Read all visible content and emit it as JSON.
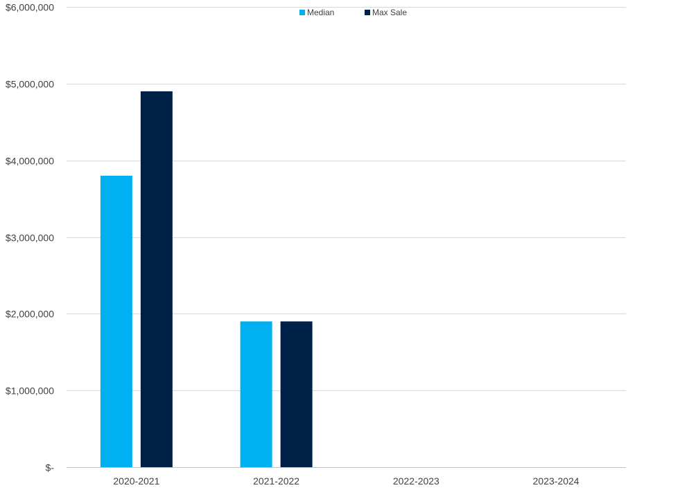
{
  "chart_data": {
    "type": "bar",
    "categories": [
      "2020-2021",
      "2021-2022",
      "2022-2023",
      "2023-2024"
    ],
    "series": [
      {
        "name": "Median",
        "color": "#00B0F0",
        "values": [
          3800000,
          1900000,
          null,
          null
        ]
      },
      {
        "name": "Max Sale",
        "color": "#002147",
        "values": [
          4900000,
          1900000,
          null,
          null
        ]
      }
    ],
    "ylim": [
      0,
      6000000
    ],
    "yticks": [
      0,
      1000000,
      2000000,
      3000000,
      4000000,
      5000000,
      6000000
    ],
    "ytick_labels": [
      "$-",
      "$1,000,000",
      "$2,000,000",
      "$3,000,000",
      "$4,000,000",
      "$5,000,000",
      "$6,000,000"
    ],
    "grid": true,
    "legend_position": "top-center",
    "title": "",
    "xlabel": "",
    "ylabel": ""
  }
}
